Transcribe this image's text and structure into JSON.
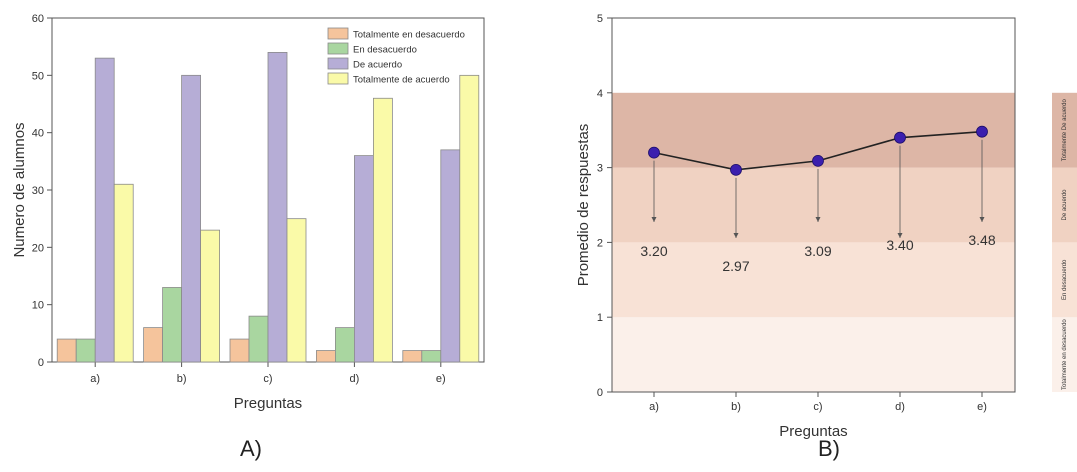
{
  "panels": {
    "A": {
      "label": "A)",
      "chart_data": {
        "type": "bar",
        "xlabel": "Preguntas",
        "ylabel": "Numero de alumnos",
        "ylim": [
          0,
          60
        ],
        "yticks": [
          0,
          10,
          20,
          30,
          40,
          50,
          60
        ],
        "categories": [
          "a)",
          "b)",
          "c)",
          "d)",
          "e)"
        ],
        "legend_position": "top-right",
        "series": [
          {
            "name": "Totalmente en desacuerdo",
            "color": "#f5c49c",
            "values": [
              4,
              6,
              4,
              2,
              2
            ]
          },
          {
            "name": "En desacuerdo",
            "color": "#a9d6a0",
            "values": [
              4,
              13,
              8,
              6,
              2
            ]
          },
          {
            "name": "De acuerdo",
            "color": "#b6add6",
            "values": [
              53,
              50,
              54,
              36,
              37
            ]
          },
          {
            "name": "Totalmente de acuerdo",
            "color": "#fafaa8",
            "values": [
              31,
              23,
              25,
              46,
              50
            ]
          }
        ]
      }
    },
    "B": {
      "label": "B)",
      "chart_data": {
        "type": "line",
        "xlabel": "Preguntas",
        "ylabel": "Promedio de respuestas",
        "ylim": [
          0,
          5
        ],
        "yticks": [
          0,
          1,
          2,
          3,
          4,
          5
        ],
        "categories": [
          "a)",
          "b)",
          "c)",
          "d)",
          "e)"
        ],
        "values": [
          3.2,
          2.97,
          3.09,
          3.4,
          3.48
        ],
        "data_labels": [
          "3.20",
          "2.97",
          "3.09",
          "3.40",
          "3.48"
        ],
        "marker_color": "#3b1fae",
        "bands": [
          {
            "from": 0,
            "to": 1,
            "color": "#fbf0ea",
            "label": "Totalmente en desacuerdo"
          },
          {
            "from": 1,
            "to": 2,
            "color": "#f8e2d6",
            "label": "En desacuerdo"
          },
          {
            "from": 2,
            "to": 3,
            "color": "#f0d2c2",
            "label": "De acuerdo"
          },
          {
            "from": 3,
            "to": 4,
            "color": "#ddb6a6",
            "label": "Totalmente De acuerdo"
          }
        ]
      }
    }
  }
}
